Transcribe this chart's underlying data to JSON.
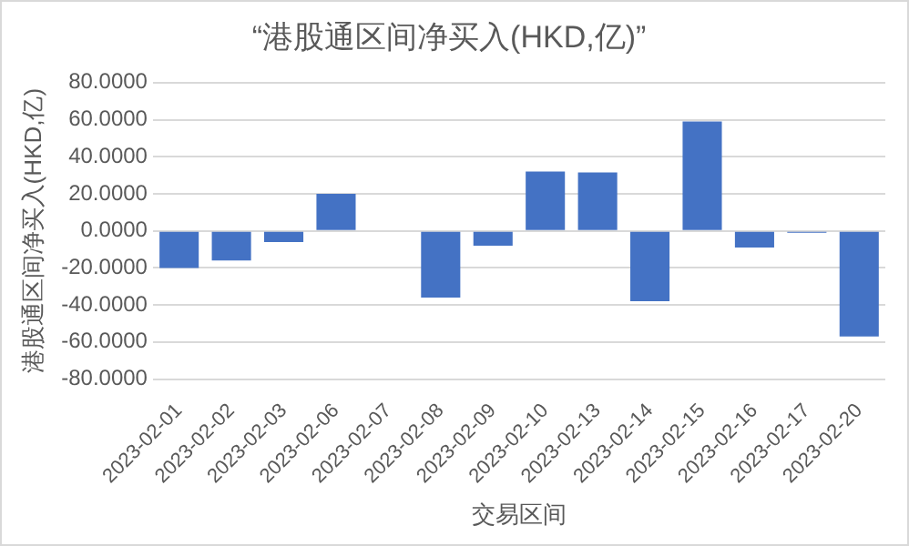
{
  "chart_data": {
    "type": "bar",
    "title": "“港股通区间净买入(HKD,亿)”",
    "xlabel": "交易区间",
    "ylabel": "港股通区间净买入(HKD,亿)",
    "categories": [
      "2023-02-01",
      "2023-02-02",
      "2023-02-03",
      "2023-02-06",
      "2023-02-07",
      "2023-02-08",
      "2023-02-09",
      "2023-02-10",
      "2023-02-13",
      "2023-02-14",
      "2023-02-15",
      "2023-02-16",
      "2023-02-17",
      "2023-02-20"
    ],
    "values": [
      -20,
      -16,
      -6,
      20,
      0,
      -36,
      -8,
      32,
      31.5,
      -38,
      59,
      -9,
      -1,
      -57
    ],
    "color": "#4472c4",
    "ylim": [
      -80,
      80
    ],
    "yticks": [
      {
        "value": -80,
        "label": "-80.0000"
      },
      {
        "value": -60,
        "label": "-60.0000"
      },
      {
        "value": -40,
        "label": "-40.0000"
      },
      {
        "value": -20,
        "label": "-20.0000"
      },
      {
        "value": 0,
        "label": "0.0000"
      },
      {
        "value": 20,
        "label": "20.0000"
      },
      {
        "value": 40,
        "label": "40.0000"
      },
      {
        "value": 60,
        "label": "60.0000"
      },
      {
        "value": 80,
        "label": "80.0000"
      }
    ],
    "grid": "y",
    "legend": false
  }
}
